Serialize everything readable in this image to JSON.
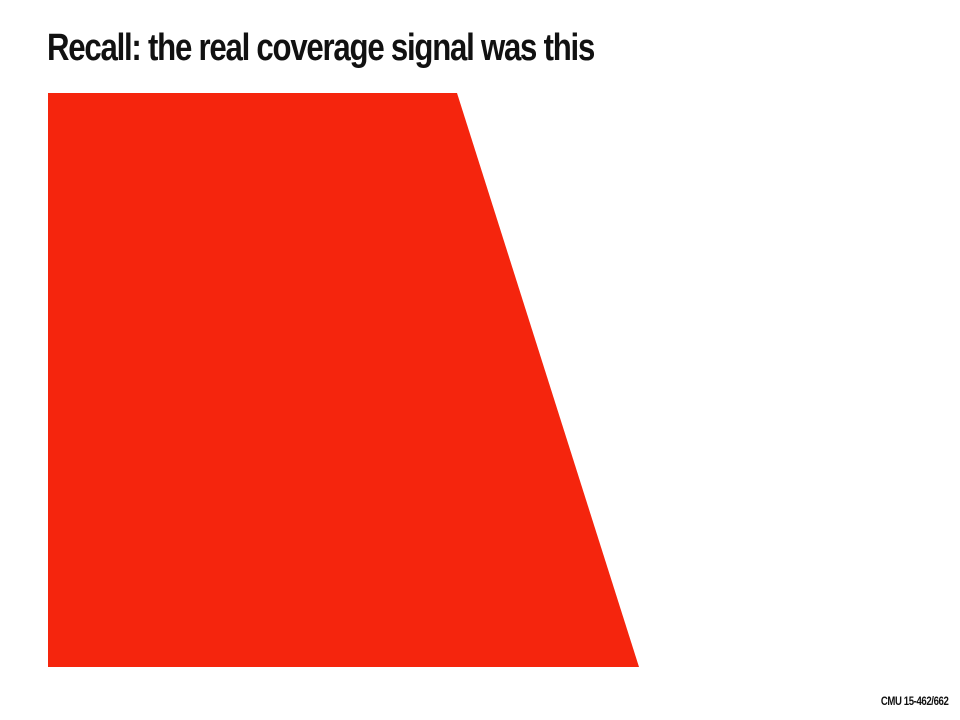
{
  "slide": {
    "title": "Recall: the real coverage signal was this",
    "footer": "CMU 15-462/662"
  },
  "colors": {
    "shape_fill": "#f5250d",
    "text": "#111111",
    "background": "#ffffff"
  }
}
